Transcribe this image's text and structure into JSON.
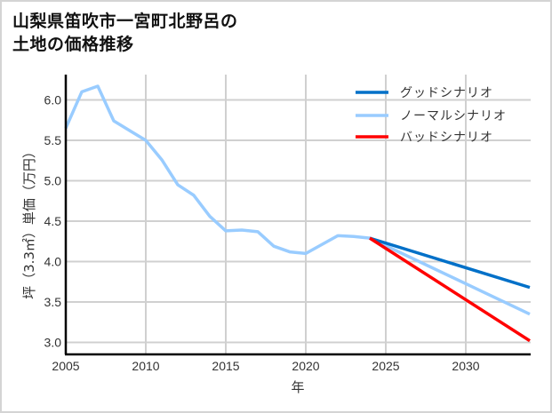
{
  "title_line1": "山梨県笛吹市一宮町北野呂の",
  "title_line2": "土地の価格推移",
  "chart_data": {
    "type": "line",
    "title": "山梨県笛吹市一宮町北野呂の土地の価格推移",
    "xlabel": "年",
    "ylabel": "坪（3.3㎡）単価（万円）",
    "xlim": [
      2005,
      2034
    ],
    "ylim": [
      2.85,
      6.3
    ],
    "xticks": [
      2005,
      2010,
      2015,
      2020,
      2025,
      2030
    ],
    "yticks": [
      3.0,
      3.5,
      4.0,
      4.5,
      5.0,
      5.5,
      6.0
    ],
    "grid": true,
    "legend_position": "upper right",
    "series": [
      {
        "name": "グッドシナリオ",
        "color": "#0070c8",
        "x": [
          2024,
          2034
        ],
        "values": [
          4.29,
          3.68
        ]
      },
      {
        "name": "ノーマルシナリオ",
        "color": "#99ccff",
        "x": [
          2005,
          2006,
          2007,
          2008,
          2009,
          2010,
          2011,
          2012,
          2013,
          2014,
          2015,
          2016,
          2017,
          2018,
          2019,
          2020,
          2021,
          2022,
          2023,
          2024,
          2034
        ],
        "values": [
          5.65,
          6.1,
          6.17,
          5.74,
          5.62,
          5.5,
          5.26,
          4.95,
          4.82,
          4.56,
          4.38,
          4.39,
          4.37,
          4.19,
          4.12,
          4.1,
          4.21,
          4.32,
          4.31,
          4.29,
          3.35
        ]
      },
      {
        "name": "バッドシナリオ",
        "color": "#ff0000",
        "x": [
          2024,
          2034
        ],
        "values": [
          4.29,
          3.02
        ]
      }
    ]
  }
}
